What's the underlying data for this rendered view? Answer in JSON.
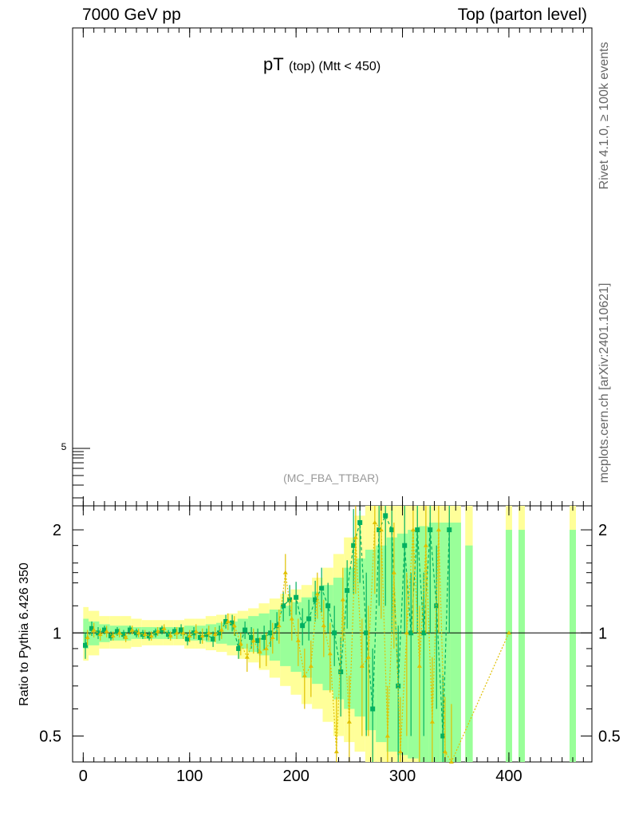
{
  "header": {
    "left_title": "7000 GeV pp",
    "right_title": "Top (parton level)"
  },
  "side_labels": {
    "upper": "Rivet 4.1.0, ≥ 100k events",
    "lower": "mcplots.cern.ch [arXiv:2401.10621]"
  },
  "chart_data": [
    {
      "type": "line",
      "panel": "main",
      "title_main": "pT",
      "title_sub": "(top) (Mtt < 450)",
      "watermark": "(MC_FBA_TTBAR)",
      "yscale": "log",
      "y_tick_label": "5",
      "xlim": [
        -10,
        478
      ],
      "grid": false
    },
    {
      "type": "scatter",
      "panel": "ratio",
      "ylabel": "Ratio to Pythia 6.426 350",
      "yscale": "log",
      "ylim": [
        0.42,
        2.35
      ],
      "xlim": [
        -10,
        478
      ],
      "x_ticks": [
        0,
        100,
        200,
        300,
        400
      ],
      "x_tick_labels": [
        "0",
        "100",
        "200",
        "300",
        "400"
      ],
      "y_ticks": [
        0.5,
        1,
        2
      ],
      "y_tick_labels": [
        "0.5",
        "1",
        "2"
      ],
      "reference_line": 1,
      "bands": {
        "yellow": [
          [
            0,
            0.83,
            1.19
          ],
          [
            5,
            0.86,
            1.16
          ],
          [
            15,
            0.9,
            1.12
          ],
          [
            25,
            0.9,
            1.12
          ],
          [
            35,
            0.9,
            1.12
          ],
          [
            45,
            0.91,
            1.1
          ],
          [
            55,
            0.92,
            1.09
          ],
          [
            65,
            0.92,
            1.09
          ],
          [
            75,
            0.92,
            1.09
          ],
          [
            85,
            0.92,
            1.09
          ],
          [
            95,
            0.9,
            1.1
          ],
          [
            105,
            0.9,
            1.1
          ],
          [
            115,
            0.89,
            1.12
          ],
          [
            125,
            0.88,
            1.13
          ],
          [
            135,
            0.86,
            1.14
          ],
          [
            145,
            0.84,
            1.16
          ],
          [
            155,
            0.82,
            1.18
          ],
          [
            165,
            0.78,
            1.22
          ],
          [
            175,
            0.74,
            1.26
          ],
          [
            185,
            0.7,
            1.3
          ],
          [
            195,
            0.66,
            1.34
          ],
          [
            205,
            0.62,
            1.38
          ],
          [
            215,
            0.6,
            1.45
          ],
          [
            225,
            0.55,
            1.55
          ],
          [
            235,
            0.5,
            1.7
          ],
          [
            245,
            0.48,
            1.9
          ],
          [
            255,
            0.45,
            2.2
          ],
          [
            265,
            0.42,
            2.35
          ],
          [
            275,
            0.42,
            2.35
          ],
          [
            285,
            0.42,
            2.35
          ],
          [
            295,
            0.42,
            2.35
          ],
          [
            305,
            0.42,
            2.35
          ],
          [
            315,
            0.42,
            2.35
          ],
          [
            325,
            0.42,
            2.35
          ],
          [
            335,
            0.42,
            2.35
          ],
          [
            345,
            0.42,
            2.35
          ]
        ],
        "green": [
          [
            0,
            0.9,
            1.1
          ],
          [
            5,
            0.92,
            1.08
          ],
          [
            15,
            0.94,
            1.06
          ],
          [
            25,
            0.95,
            1.05
          ],
          [
            35,
            0.95,
            1.05
          ],
          [
            45,
            0.96,
            1.04
          ],
          [
            55,
            0.96,
            1.04
          ],
          [
            65,
            0.96,
            1.04
          ],
          [
            75,
            0.96,
            1.04
          ],
          [
            85,
            0.96,
            1.04
          ],
          [
            95,
            0.95,
            1.05
          ],
          [
            105,
            0.95,
            1.05
          ],
          [
            115,
            0.94,
            1.06
          ],
          [
            125,
            0.93,
            1.07
          ],
          [
            135,
            0.92,
            1.08
          ],
          [
            145,
            0.9,
            1.1
          ],
          [
            155,
            0.88,
            1.12
          ],
          [
            165,
            0.86,
            1.14
          ],
          [
            175,
            0.83,
            1.17
          ],
          [
            185,
            0.8,
            1.2
          ],
          [
            195,
            0.77,
            1.23
          ],
          [
            205,
            0.74,
            1.27
          ],
          [
            215,
            0.71,
            1.32
          ],
          [
            225,
            0.68,
            1.38
          ],
          [
            235,
            0.64,
            1.45
          ],
          [
            245,
            0.6,
            1.55
          ],
          [
            255,
            0.57,
            1.65
          ],
          [
            265,
            0.52,
            1.75
          ],
          [
            275,
            0.48,
            1.8
          ],
          [
            285,
            0.45,
            1.9
          ],
          [
            295,
            0.44,
            1.95
          ],
          [
            305,
            0.43,
            2.0
          ],
          [
            315,
            0.42,
            2.05
          ],
          [
            325,
            0.42,
            2.1
          ],
          [
            335,
            0.42,
            2.1
          ],
          [
            345,
            0.42,
            2.1
          ]
        ],
        "isolated": [
          {
            "x0": 359,
            "x1": 366,
            "yellow": [
              0.42,
              2.35
            ],
            "green": [
              0.42,
              1.8
            ]
          },
          {
            "x0": 397,
            "x1": 403,
            "yellow": [
              0.42,
              2.35
            ],
            "green": [
              0.42,
              2.0
            ]
          },
          {
            "x0": 409,
            "x1": 415,
            "yellow": [
              0.42,
              2.35
            ],
            "green": [
              0.42,
              2.0
            ]
          },
          {
            "x0": 457,
            "x1": 463,
            "yellow": [
              0.42,
              2.35
            ],
            "green": [
              0.42,
              2.0
            ]
          }
        ]
      },
      "series": [
        {
          "color": "#00b060",
          "marker": "square",
          "points": [
            [
              2,
              0.92,
              0.08
            ],
            [
              8,
              1.03,
              0.05
            ],
            [
              14,
              1.0,
              0.04
            ],
            [
              20,
              1.02,
              0.03
            ],
            [
              26,
              0.98,
              0.03
            ],
            [
              32,
              1.01,
              0.03
            ],
            [
              38,
              0.99,
              0.03
            ],
            [
              44,
              1.02,
              0.03
            ],
            [
              50,
              1.0,
              0.03
            ],
            [
              56,
              0.99,
              0.03
            ],
            [
              62,
              0.98,
              0.03
            ],
            [
              68,
              1.0,
              0.03
            ],
            [
              74,
              1.02,
              0.03
            ],
            [
              80,
              0.99,
              0.03
            ],
            [
              86,
              1.01,
              0.03
            ],
            [
              92,
              1.02,
              0.04
            ],
            [
              98,
              0.96,
              0.04
            ],
            [
              104,
              1.0,
              0.04
            ],
            [
              110,
              0.97,
              0.04
            ],
            [
              116,
              0.99,
              0.04
            ],
            [
              122,
              0.96,
              0.05
            ],
            [
              128,
              1.0,
              0.05
            ],
            [
              134,
              1.08,
              0.05
            ],
            [
              140,
              1.07,
              0.06
            ],
            [
              146,
              0.9,
              0.06
            ],
            [
              152,
              1.02,
              0.06
            ],
            [
              158,
              0.97,
              0.07
            ],
            [
              164,
              0.95,
              0.08
            ],
            [
              170,
              0.97,
              0.08
            ],
            [
              176,
              1.0,
              0.09
            ],
            [
              182,
              1.05,
              0.1
            ],
            [
              188,
              1.2,
              0.12
            ],
            [
              194,
              1.25,
              0.13
            ],
            [
              200,
              1.27,
              0.14
            ],
            [
              206,
              1.05,
              0.13
            ],
            [
              212,
              1.1,
              0.15
            ],
            [
              218,
              1.25,
              0.17
            ],
            [
              224,
              1.35,
              0.2
            ],
            [
              230,
              1.2,
              0.2
            ],
            [
              236,
              1.0,
              0.2
            ],
            [
              242,
              0.77,
              0.2
            ],
            [
              248,
              1.33,
              0.3
            ],
            [
              254,
              1.8,
              0.5
            ],
            [
              260,
              2.1,
              0.7
            ],
            [
              266,
              1.0,
              0.5
            ],
            [
              272,
              0.6,
              0.3
            ],
            [
              278,
              2.0,
              0.8
            ],
            [
              284,
              2.2,
              1.0
            ],
            [
              290,
              2.0,
              1.0
            ],
            [
              296,
              0.7,
              0.35
            ],
            [
              302,
              1.8,
              0.8
            ],
            [
              308,
              1.0,
              0.5
            ],
            [
              314,
              2.0,
              1.0
            ],
            [
              320,
              1.0,
              0.5
            ],
            [
              326,
              2.0,
              1.0
            ],
            [
              332,
              1.2,
              0.6
            ],
            [
              338,
              0.5,
              0.25
            ],
            [
              344,
              2.0,
              1.0
            ]
          ]
        },
        {
          "color": "#e0c000",
          "marker": "triangle",
          "points": [
            [
              4,
              0.97,
              0.05
            ],
            [
              10,
              1.02,
              0.05
            ],
            [
              16,
              0.99,
              0.04
            ],
            [
              22,
              1.01,
              0.04
            ],
            [
              28,
              0.98,
              0.03
            ],
            [
              34,
              1.0,
              0.03
            ],
            [
              40,
              0.97,
              0.03
            ],
            [
              46,
              1.02,
              0.03
            ],
            [
              52,
              1.0,
              0.03
            ],
            [
              58,
              0.99,
              0.03
            ],
            [
              64,
              0.98,
              0.03
            ],
            [
              70,
              1.01,
              0.03
            ],
            [
              76,
              1.03,
              0.03
            ],
            [
              82,
              0.98,
              0.03
            ],
            [
              88,
              1.0,
              0.04
            ],
            [
              94,
              1.0,
              0.04
            ],
            [
              100,
              0.98,
              0.04
            ],
            [
              106,
              1.01,
              0.05
            ],
            [
              112,
              0.98,
              0.05
            ],
            [
              118,
              1.0,
              0.05
            ],
            [
              124,
              0.99,
              0.05
            ],
            [
              130,
              1.02,
              0.06
            ],
            [
              136,
              1.08,
              0.06
            ],
            [
              142,
              1.05,
              0.07
            ],
            [
              148,
              0.93,
              0.07
            ],
            [
              154,
              0.85,
              0.08
            ],
            [
              160,
              0.95,
              0.08
            ],
            [
              166,
              0.88,
              0.09
            ],
            [
              172,
              0.9,
              0.1
            ],
            [
              178,
              0.97,
              0.1
            ],
            [
              184,
              1.05,
              0.12
            ],
            [
              190,
              1.5,
              0.2
            ],
            [
              196,
              1.1,
              0.15
            ],
            [
              202,
              0.95,
              0.15
            ],
            [
              208,
              0.75,
              0.15
            ],
            [
              214,
              0.8,
              0.15
            ],
            [
              220,
              1.3,
              0.2
            ],
            [
              226,
              1.05,
              0.2
            ],
            [
              232,
              0.87,
              0.2
            ],
            [
              238,
              0.45,
              0.2
            ],
            [
              244,
              1.25,
              0.3
            ],
            [
              250,
              0.55,
              0.2
            ],
            [
              256,
              1.9,
              0.6
            ],
            [
              262,
              0.8,
              0.3
            ],
            [
              268,
              0.85,
              0.35
            ],
            [
              274,
              2.1,
              0.8
            ],
            [
              280,
              2.0,
              0.9
            ],
            [
              286,
              0.5,
              0.2
            ],
            [
              292,
              1.5,
              0.6
            ],
            [
              298,
              0.45,
              0.2
            ],
            [
              304,
              1.0,
              0.5
            ],
            [
              310,
              2.0,
              1.0
            ],
            [
              316,
              0.8,
              0.4
            ],
            [
              322,
              1.8,
              0.8
            ],
            [
              328,
              0.55,
              0.3
            ],
            [
              334,
              2.0,
              1.0
            ],
            [
              340,
              0.45,
              0.2
            ],
            [
              346,
              0.42,
              0.2
            ],
            [
              400,
              1.0,
              0.0
            ]
          ]
        }
      ]
    }
  ]
}
